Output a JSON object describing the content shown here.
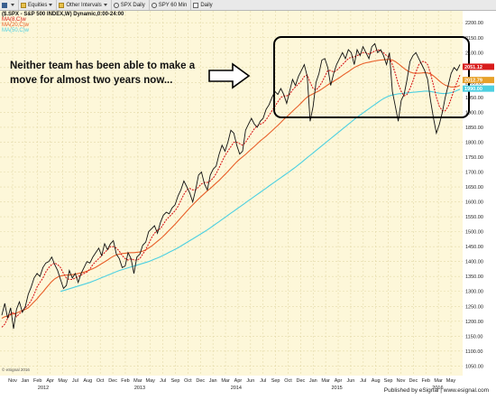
{
  "toolbar": {
    "items": [
      {
        "label": "",
        "icon": "menu-icon"
      },
      {
        "label": "Equities",
        "icon": "folder-icon"
      },
      {
        "label": "Other Intervals",
        "icon": "folder-icon"
      },
      {
        "label": "SPX Daily",
        "icon": "clock-icon"
      },
      {
        "label": "SPY 60 Min",
        "icon": "clock-icon"
      },
      {
        "label": "Daily",
        "icon": "checkbox-icon"
      }
    ]
  },
  "header": {
    "symbol_line": "($.SPX - S&P 500 INDEX,W) Dynamic,0:00-24:00",
    "legend": [
      {
        "label": "MA(8,C)w",
        "color": "#d81b1b"
      },
      {
        "label": "MA(20,C)w",
        "color": "#e8602a"
      },
      {
        "label": "MA(50,C)w",
        "color": "#4dd0e1"
      }
    ]
  },
  "annotation": {
    "line1": "Neither team has been able to make a",
    "line2": "move for almost two years now..."
  },
  "watermark": "© eSignal 2016",
  "footer": "Published by eSignal | www.esignal.com",
  "price_badges": [
    {
      "value": "2051.12",
      "color": "#d81b1b"
    },
    {
      "value": "2012.79",
      "color": "#e8a12a"
    },
    {
      "value": "1990.00",
      "color": "#4dd0e1"
    }
  ],
  "chart_data": {
    "type": "line",
    "title": "($.SPX - S&P 500 INDEX,W) Dynamic,0:00-24:00",
    "y_ticks": [
      1050,
      1100,
      1150,
      1200,
      1250,
      1300,
      1350,
      1400,
      1450,
      1500,
      1550,
      1600,
      1650,
      1700,
      1750,
      1800,
      1850,
      1900,
      1950,
      2000,
      2050,
      2100,
      2150,
      2200
    ],
    "ylim": [
      1030,
      2240
    ],
    "x_tick_labels": [
      "Nov",
      "Jan",
      "Feb",
      "Apr",
      "May",
      "Jul",
      "Aug",
      "Oct",
      "Dec",
      "Feb",
      "Mar",
      "May",
      "Jul",
      "Sep",
      "Oct",
      "Dec",
      "Jan",
      "Mar",
      "Apr",
      "Jun",
      "Jul",
      "Sep",
      "Oct",
      "Dec",
      "Jan",
      "Mar",
      "Apr",
      "Jun",
      "Jul",
      "Aug",
      "Sep",
      "Nov",
      "Dec",
      "Feb",
      "Mar",
      "May"
    ],
    "year_labels": [
      "2012",
      "2013",
      "2014",
      "2015",
      "2016"
    ],
    "grid": true,
    "series": [
      {
        "name": "$.SPX",
        "color": "#111111",
        "values": [
          1220,
          1260,
          1210,
          1245,
          1175,
          1240,
          1265,
          1230,
          1250,
          1290,
          1315,
          1345,
          1360,
          1350,
          1380,
          1395,
          1400,
          1415,
          1390,
          1370,
          1340,
          1310,
          1320,
          1370,
          1345,
          1360,
          1330,
          1360,
          1380,
          1400,
          1395,
          1415,
          1430,
          1445,
          1420,
          1460,
          1440,
          1460,
          1470,
          1425,
          1410,
          1380,
          1385,
          1430,
          1410,
          1360,
          1415,
          1425,
          1455,
          1465,
          1500,
          1510,
          1520,
          1495,
          1530,
          1555,
          1565,
          1560,
          1580,
          1590,
          1620,
          1640,
          1670,
          1650,
          1630,
          1600,
          1640,
          1690,
          1700,
          1660,
          1640,
          1690,
          1710,
          1720,
          1760,
          1790,
          1770,
          1800,
          1840,
          1830,
          1790,
          1760,
          1770,
          1840,
          1860,
          1880,
          1860,
          1850,
          1870,
          1880,
          1910,
          1925,
          1950,
          1970,
          1960,
          1980,
          1960,
          1930,
          1970,
          2010,
          1990,
          2020,
          2040,
          2060,
          2020,
          1870,
          1920,
          2000,
          2030,
          2075,
          2080,
          2050,
          1990,
          2030,
          2060,
          2080,
          2100,
          2080,
          2110,
          2100,
          2060,
          2110,
          2090,
          2120,
          2100,
          2080,
          2120,
          2130,
          2100,
          2110,
          2090,
          2060,
          2100,
          1970,
          1920,
          1870,
          1940,
          1960,
          2010,
          2070,
          2090,
          2100,
          2080,
          2060,
          2040,
          2010,
          1940,
          1880,
          1830,
          1860,
          1900,
          1950,
          1990,
          2030,
          2050,
          2040,
          2060
        ]
      },
      {
        "name": "MA(8,C)w",
        "color": "#d81b1b",
        "values": [
          1180,
          1190,
          1210,
          1225,
          1230,
          1215,
          1225,
          1235,
          1245,
          1255,
          1270,
          1290,
          1315,
          1330,
          1345,
          1365,
          1380,
          1390,
          1395,
          1390,
          1380,
          1360,
          1345,
          1340,
          1340,
          1345,
          1350,
          1355,
          1360,
          1365,
          1375,
          1390,
          1400,
          1410,
          1420,
          1430,
          1440,
          1450,
          1450,
          1445,
          1435,
          1420,
          1410,
          1405,
          1410,
          1405,
          1405,
          1410,
          1425,
          1440,
          1460,
          1480,
          1495,
          1505,
          1510,
          1525,
          1540,
          1550,
          1560,
          1570,
          1585,
          1605,
          1625,
          1640,
          1645,
          1640,
          1640,
          1650,
          1660,
          1665,
          1665,
          1670,
          1680,
          1695,
          1715,
          1735,
          1755,
          1770,
          1785,
          1800,
          1800,
          1795,
          1790,
          1800,
          1815,
          1830,
          1845,
          1855,
          1860,
          1865,
          1875,
          1890,
          1905,
          1920,
          1935,
          1950,
          1955,
          1955,
          1960,
          1975,
          1985,
          1995,
          2005,
          2020,
          2025,
          2000,
          1980,
          1975,
          1985,
          2000,
          2020,
          2040,
          2040,
          2035,
          2040,
          2050,
          2060,
          2070,
          2080,
          2085,
          2085,
          2090,
          2095,
          2100,
          2100,
          2095,
          2100,
          2105,
          2110,
          2105,
          2100,
          2090,
          2085,
          2060,
          2030,
          1995,
          1970,
          1955,
          1960,
          1980,
          2005,
          2035,
          2060,
          2070,
          2070,
          2060,
          2030,
          1990,
          1950,
          1920,
          1905,
          1905,
          1920,
          1945,
          1975,
          2000,
          2025
        ]
      },
      {
        "name": "MA(20,C)w",
        "color": "#e8602a",
        "values": [
          1210,
          1215,
          1218,
          1222,
          1225,
          1227,
          1232,
          1236,
          1240,
          1245,
          1255,
          1265,
          1275,
          1287,
          1298,
          1310,
          1322,
          1333,
          1342,
          1348,
          1352,
          1354,
          1355,
          1355,
          1356,
          1358,
          1360,
          1362,
          1365,
          1368,
          1372,
          1376,
          1381,
          1387,
          1393,
          1399,
          1405,
          1412,
          1418,
          1422,
          1425,
          1427,
          1428,
          1429,
          1430,
          1430,
          1431,
          1432,
          1435,
          1439,
          1445,
          1452,
          1460,
          1468,
          1476,
          1485,
          1495,
          1505,
          1515,
          1525,
          1536,
          1547,
          1558,
          1569,
          1580,
          1590,
          1600,
          1610,
          1619,
          1628,
          1637,
          1645,
          1654,
          1663,
          1672,
          1682,
          1692,
          1702,
          1713,
          1724,
          1734,
          1743,
          1751,
          1759,
          1768,
          1777,
          1786,
          1795,
          1804,
          1812,
          1820,
          1829,
          1838,
          1847,
          1856,
          1866,
          1876,
          1885,
          1894,
          1904,
          1913,
          1922,
          1932,
          1942,
          1951,
          1957,
          1962,
          1967,
          1972,
          1978,
          1985,
          1992,
          1998,
          2004,
          2010,
          2016,
          2023,
          2030,
          2036,
          2043,
          2050,
          2055,
          2059,
          2063,
          2066,
          2068,
          2070,
          2072,
          2074,
          2075,
          2076,
          2077,
          2077,
          2075,
          2070,
          2063,
          2055,
          2047,
          2040,
          2035,
          2032,
          2031,
          2031,
          2032,
          2033,
          2032,
          2029,
          2022,
          2014,
          2005,
          1997,
          1991,
          1987,
          1985,
          1985,
          1986,
          1990
        ]
      },
      {
        "name": "MA(50,C)w",
        "color": "#4dd0e1",
        "values": [
          null,
          null,
          null,
          null,
          null,
          null,
          null,
          null,
          null,
          null,
          null,
          null,
          null,
          null,
          null,
          null,
          null,
          null,
          null,
          null,
          1300,
          1303,
          1306,
          1309,
          1312,
          1315,
          1318,
          1321,
          1324,
          1327,
          1330,
          1334,
          1338,
          1342,
          1346,
          1350,
          1354,
          1358,
          1362,
          1366,
          1370,
          1373,
          1376,
          1379,
          1382,
          1385,
          1388,
          1391,
          1394,
          1397,
          1400,
          1404,
          1408,
          1412,
          1416,
          1421,
          1426,
          1431,
          1436,
          1441,
          1446,
          1452,
          1458,
          1464,
          1470,
          1476,
          1482,
          1488,
          1494,
          1500,
          1506,
          1513,
          1520,
          1527,
          1534,
          1541,
          1548,
          1555,
          1562,
          1569,
          1576,
          1583,
          1590,
          1597,
          1604,
          1611,
          1618,
          1625,
          1632,
          1639,
          1646,
          1653,
          1660,
          1667,
          1674,
          1681,
          1688,
          1695,
          1702,
          1709,
          1716,
          1724,
          1732,
          1740,
          1748,
          1756,
          1764,
          1772,
          1780,
          1788,
          1796,
          1804,
          1812,
          1820,
          1828,
          1836,
          1844,
          1852,
          1860,
          1868,
          1876,
          1884,
          1891,
          1898,
          1905,
          1912,
          1919,
          1926,
          1933,
          1940,
          1946,
          1951,
          1955,
          1958,
          1960,
          1962,
          1963,
          1964,
          1965,
          1966,
          1967,
          1968,
          1969,
          1970,
          1971,
          1971,
          1970,
          1968,
          1966,
          1964,
          1963,
          1963,
          1964,
          1966,
          1969,
          1973,
          1977
        ]
      }
    ]
  }
}
